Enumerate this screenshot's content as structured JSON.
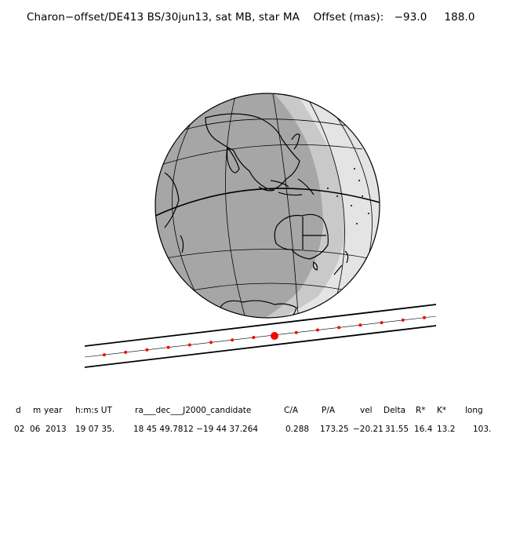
{
  "title": "Charon−offset/DE413 BS/30jun13, sat MB, star MA",
  "offset_label": "Offset (mas):",
  "offset_x": "−93.0",
  "offset_y": "188.0",
  "table": {
    "headers": [
      "d",
      "m",
      "year",
      "h:m:s UT",
      "ra___dec___J2000_candidate",
      "C/A",
      "P/A",
      "vel",
      "Delta",
      "R*",
      "K*",
      "long"
    ],
    "values": [
      "02",
      "06",
      "2013",
      "19 07 35.",
      "18 45 49.7812 −19 44 37.264",
      "0.288",
      "173.25",
      "−20.21",
      "31.55",
      "16.4",
      "13.2",
      "103."
    ]
  },
  "colors": {
    "night": "#a6a6a6",
    "twilight": "#c9c9c9",
    "day": "#e4e4e4",
    "track_dot": "#ff0000",
    "lines": "#000000"
  }
}
